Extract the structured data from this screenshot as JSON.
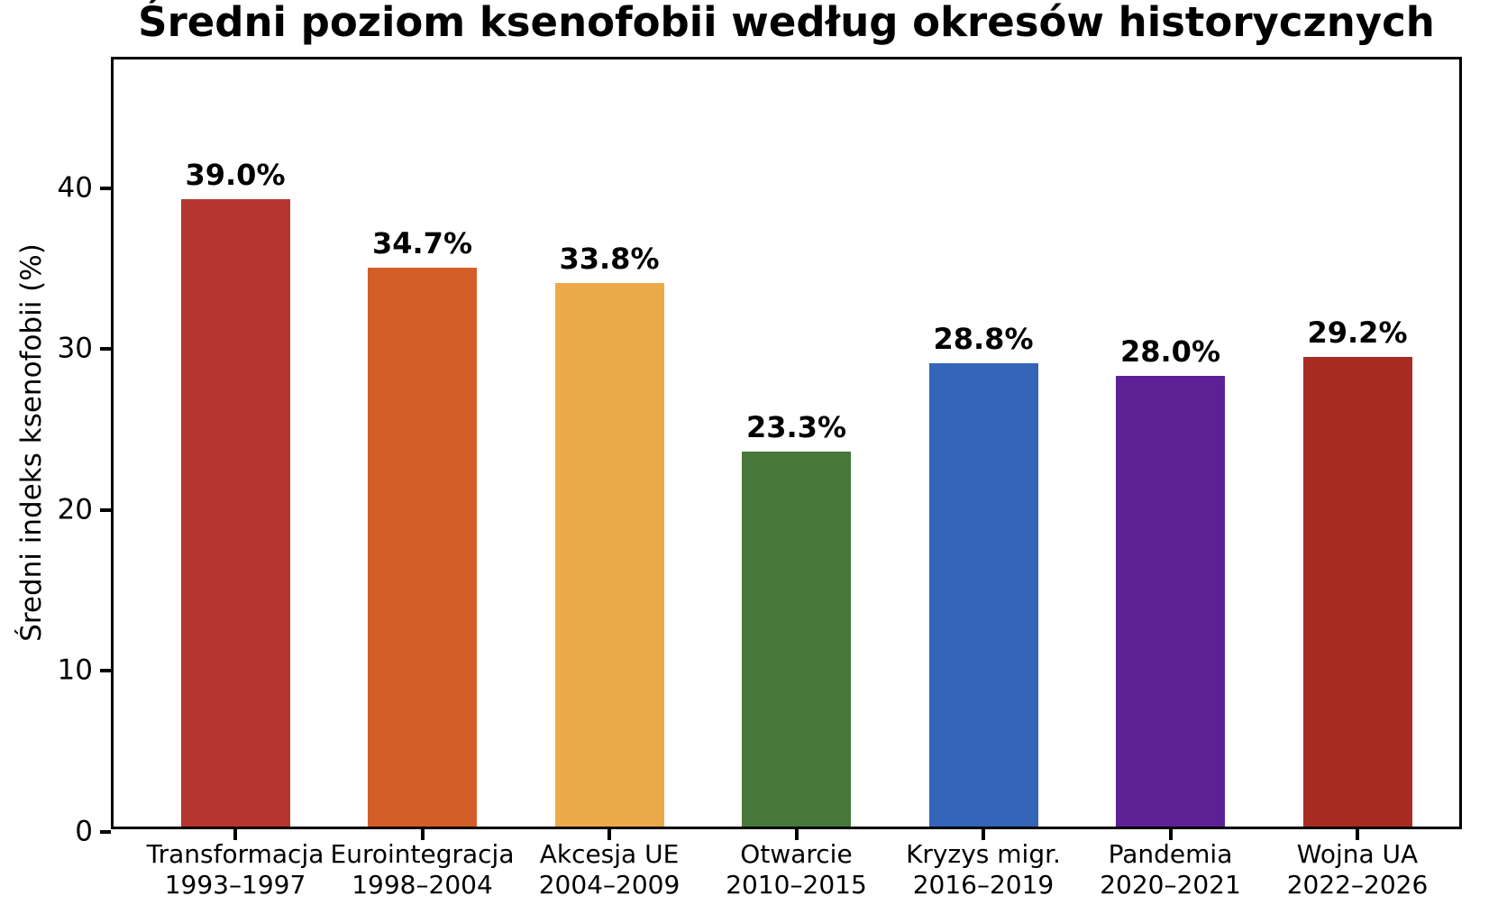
{
  "chart_data": {
    "type": "bar",
    "title": "Średni poziom ksenofobii według okresów historycznych",
    "ylabel": "Średni indeks ksenofobii (%)",
    "xlabel": "",
    "categories": [
      {
        "name": "Transformacja",
        "years": "1993–1997"
      },
      {
        "name": "Eurointegracja",
        "years": "1998–2004"
      },
      {
        "name": "Akcesja UE",
        "years": "2004–2009"
      },
      {
        "name": "Otwarcie",
        "years": "2010–2015"
      },
      {
        "name": "Kryzys migr.",
        "years": "2016–2019"
      },
      {
        "name": "Pandemia",
        "years": "2020–2021"
      },
      {
        "name": "Wojna UA",
        "years": "2022–2026"
      }
    ],
    "values": [
      39.0,
      34.7,
      33.8,
      23.3,
      28.8,
      28.0,
      29.2
    ],
    "bar_labels": [
      "39.0%",
      "34.7%",
      "33.8%",
      "23.3%",
      "28.8%",
      "28.0%",
      "29.2%"
    ],
    "colors": [
      "#b5362f",
      "#d45e27",
      "#ebaa47",
      "#46793a",
      "#3465b8",
      "#5e2095",
      "#a92c23"
    ],
    "yticks": [
      0,
      10,
      20,
      30,
      40
    ],
    "ylim": [
      0,
      48
    ],
    "grid": false,
    "legend": "none",
    "axis_color": "#000000",
    "background_color": "#ffffff"
  }
}
